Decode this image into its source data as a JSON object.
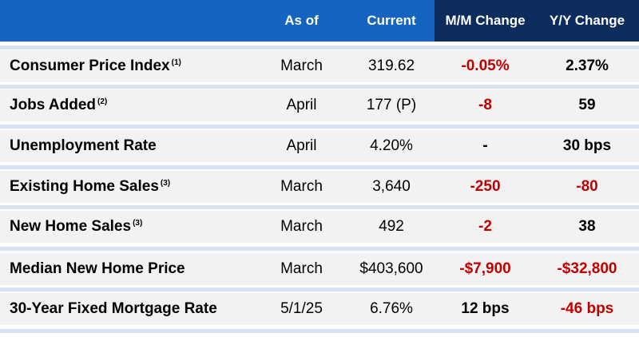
{
  "header": {
    "as_of": "As of",
    "current": "Current",
    "mm_change": "M/M Change",
    "yy_change": "Y/Y Change"
  },
  "rows": [
    {
      "label": "Consumer Price Index",
      "note": "(1)",
      "as_of": "March",
      "current": "319.62",
      "mm": "-0.05%",
      "yy": "2.37%"
    },
    {
      "label": "Jobs Added",
      "note": "(2)",
      "as_of": "April",
      "current": "177 (P)",
      "mm": "-8",
      "yy": "59"
    },
    {
      "label": "Unemployment Rate",
      "note": "",
      "as_of": "April",
      "current": "4.20%",
      "mm": "-",
      "yy": "30 bps"
    },
    {
      "label": "Existing Home Sales",
      "note": "(3)",
      "as_of": "March",
      "current": "3,640",
      "mm": "-250",
      "yy": "-80"
    },
    {
      "label": "New Home Sales",
      "note": "(3)",
      "as_of": "March",
      "current": "492",
      "mm": "-2",
      "yy": "38"
    },
    {
      "label": "Median New Home Price",
      "note": "",
      "as_of": "March",
      "current": "$403,600",
      "mm": "-$7,900",
      "yy": "-$32,800"
    },
    {
      "label": "30-Year Fixed Mortgage Rate",
      "note": "",
      "as_of": "5/1/25",
      "current": "6.76%",
      "mm": "12 bps",
      "yy": "-46 bps"
    }
  ],
  "colors": {
    "header_blue": "#1565c0",
    "header_navy": "#0d2c5e",
    "negative_red": "#c00000",
    "row_gray": "#f2f2f2",
    "separator_blue": "#d7e3f1"
  }
}
